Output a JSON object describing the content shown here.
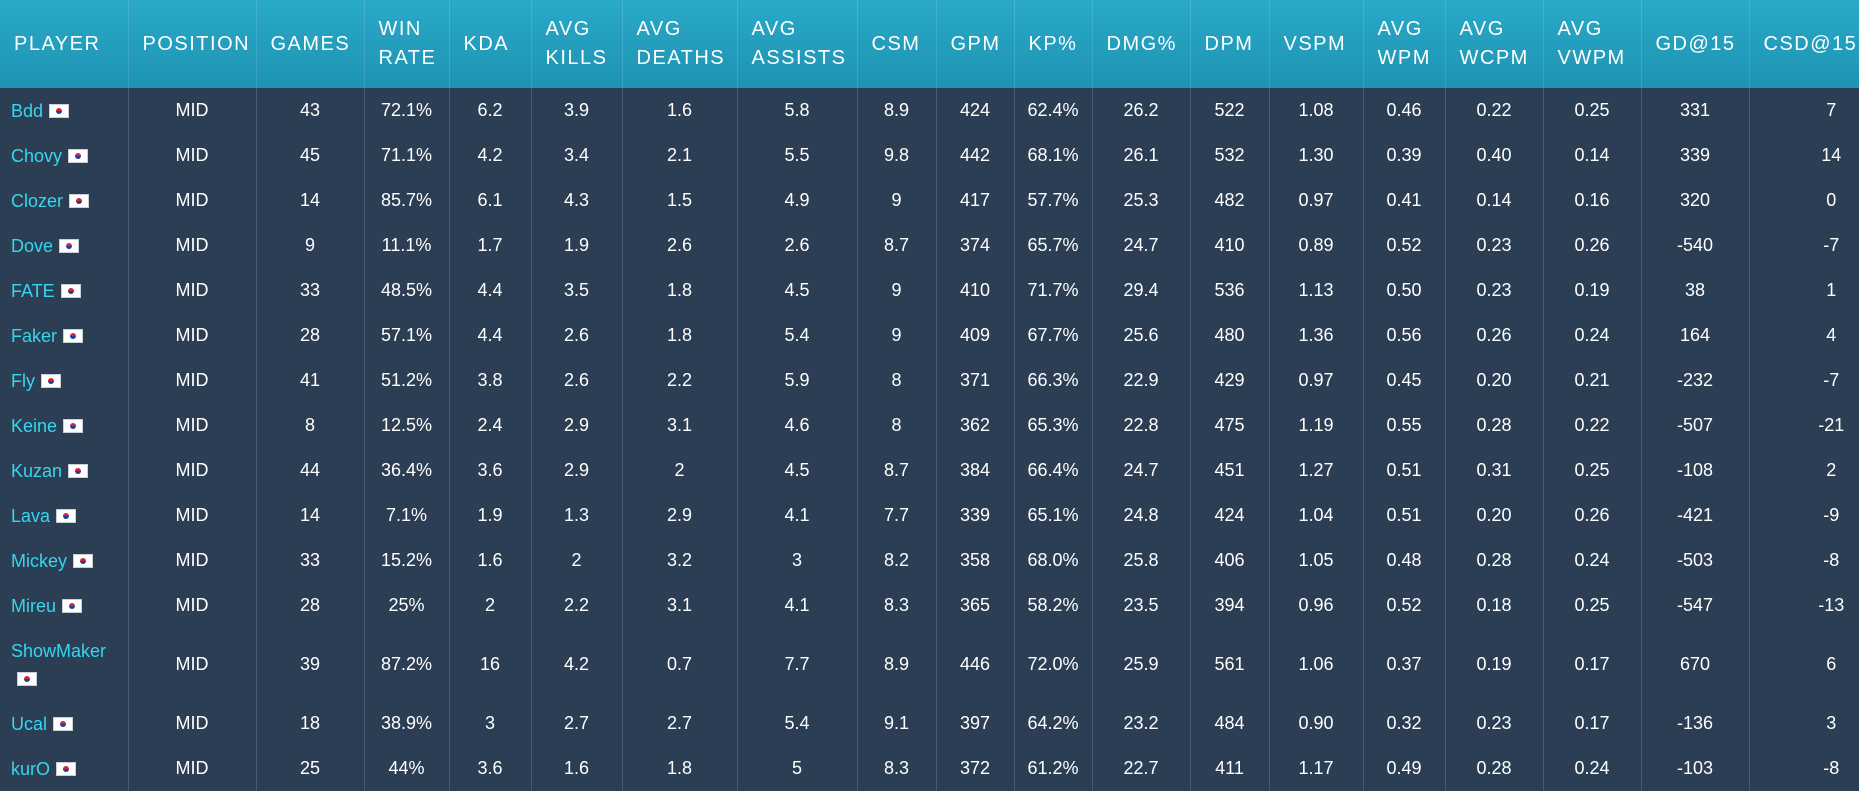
{
  "headers": [
    "PLAYER",
    "POSITION",
    "GAMES",
    "WIN RATE",
    "KDA",
    "AVG KILLS",
    "AVG DEATHS",
    "AVG ASSISTS",
    "CSM",
    "GPM",
    "KP%",
    "DMG%",
    "DPM",
    "VSPM",
    "AVG WPM",
    "AVG WCPM",
    "AVG VWPM",
    "GD@15",
    "CSD@15"
  ],
  "rows": [
    {
      "player": "Bdd",
      "flag": "south-korea-flag",
      "cells": [
        "MID",
        "43",
        "72.1%",
        "6.2",
        "3.9",
        "1.6",
        "5.8",
        "8.9",
        "424",
        "62.4%",
        "26.2",
        "522",
        "1.08",
        "0.46",
        "0.22",
        "0.25",
        "331",
        "7"
      ]
    },
    {
      "player": "Chovy",
      "flag": "south-korea-flag",
      "cells": [
        "MID",
        "45",
        "71.1%",
        "4.2",
        "3.4",
        "2.1",
        "5.5",
        "9.8",
        "442",
        "68.1%",
        "26.1",
        "532",
        "1.30",
        "0.39",
        "0.40",
        "0.14",
        "339",
        "14"
      ]
    },
    {
      "player": "Clozer",
      "flag": "south-korea-flag",
      "cells": [
        "MID",
        "14",
        "85.7%",
        "6.1",
        "4.3",
        "1.5",
        "4.9",
        "9",
        "417",
        "57.7%",
        "25.3",
        "482",
        "0.97",
        "0.41",
        "0.14",
        "0.16",
        "320",
        "0"
      ]
    },
    {
      "player": "Dove",
      "flag": "south-korea-flag",
      "cells": [
        "MID",
        "9",
        "11.1%",
        "1.7",
        "1.9",
        "2.6",
        "2.6",
        "8.7",
        "374",
        "65.7%",
        "24.7",
        "410",
        "0.89",
        "0.52",
        "0.23",
        "0.26",
        "-540",
        "-7"
      ]
    },
    {
      "player": "FATE",
      "flag": "south-korea-flag",
      "cells": [
        "MID",
        "33",
        "48.5%",
        "4.4",
        "3.5",
        "1.8",
        "4.5",
        "9",
        "410",
        "71.7%",
        "29.4",
        "536",
        "1.13",
        "0.50",
        "0.23",
        "0.19",
        "38",
        "1"
      ]
    },
    {
      "player": "Faker",
      "flag": "south-korea-flag",
      "cells": [
        "MID",
        "28",
        "57.1%",
        "4.4",
        "2.6",
        "1.8",
        "5.4",
        "9",
        "409",
        "67.7%",
        "25.6",
        "480",
        "1.36",
        "0.56",
        "0.26",
        "0.24",
        "164",
        "4"
      ]
    },
    {
      "player": "Fly",
      "flag": "south-korea-flag",
      "cells": [
        "MID",
        "41",
        "51.2%",
        "3.8",
        "2.6",
        "2.2",
        "5.9",
        "8",
        "371",
        "66.3%",
        "22.9",
        "429",
        "0.97",
        "0.45",
        "0.20",
        "0.21",
        "-232",
        "-7"
      ]
    },
    {
      "player": "Keine",
      "flag": "south-korea-flag",
      "cells": [
        "MID",
        "8",
        "12.5%",
        "2.4",
        "2.9",
        "3.1",
        "4.6",
        "8",
        "362",
        "65.3%",
        "22.8",
        "475",
        "1.19",
        "0.55",
        "0.28",
        "0.22",
        "-507",
        "-21"
      ]
    },
    {
      "player": "Kuzan",
      "flag": "south-korea-flag",
      "cells": [
        "MID",
        "44",
        "36.4%",
        "3.6",
        "2.9",
        "2",
        "4.5",
        "8.7",
        "384",
        "66.4%",
        "24.7",
        "451",
        "1.27",
        "0.51",
        "0.31",
        "0.25",
        "-108",
        "2"
      ]
    },
    {
      "player": "Lava",
      "flag": "south-korea-flag",
      "cells": [
        "MID",
        "14",
        "7.1%",
        "1.9",
        "1.3",
        "2.9",
        "4.1",
        "7.7",
        "339",
        "65.1%",
        "24.8",
        "424",
        "1.04",
        "0.51",
        "0.20",
        "0.26",
        "-421",
        "-9"
      ]
    },
    {
      "player": "Mickey",
      "flag": "south-korea-flag",
      "cells": [
        "MID",
        "33",
        "15.2%",
        "1.6",
        "2",
        "3.2",
        "3",
        "8.2",
        "358",
        "68.0%",
        "25.8",
        "406",
        "1.05",
        "0.48",
        "0.28",
        "0.24",
        "-503",
        "-8"
      ]
    },
    {
      "player": "Mireu",
      "flag": "south-korea-flag",
      "cells": [
        "MID",
        "28",
        "25%",
        "2",
        "2.2",
        "3.1",
        "4.1",
        "8.3",
        "365",
        "58.2%",
        "23.5",
        "394",
        "0.96",
        "0.52",
        "0.18",
        "0.25",
        "-547",
        "-13"
      ]
    },
    {
      "player": "ShowMaker",
      "flag": "south-korea-flag",
      "cells": [
        "MID",
        "39",
        "87.2%",
        "16",
        "4.2",
        "0.7",
        "7.7",
        "8.9",
        "446",
        "72.0%",
        "25.9",
        "561",
        "1.06",
        "0.37",
        "0.19",
        "0.17",
        "670",
        "6"
      ]
    },
    {
      "player": "Ucal",
      "flag": "south-korea-flag",
      "cells": [
        "MID",
        "18",
        "38.9%",
        "3",
        "2.7",
        "2.7",
        "5.4",
        "9.1",
        "397",
        "64.2%",
        "23.2",
        "484",
        "0.90",
        "0.32",
        "0.23",
        "0.17",
        "-136",
        "3"
      ]
    },
    {
      "player": "kurO",
      "flag": "south-korea-flag",
      "cells": [
        "MID",
        "25",
        "44%",
        "3.6",
        "1.6",
        "1.8",
        "5",
        "8.3",
        "372",
        "61.2%",
        "22.7",
        "411",
        "1.17",
        "0.49",
        "0.28",
        "0.24",
        "-103",
        "-8"
      ]
    }
  ]
}
